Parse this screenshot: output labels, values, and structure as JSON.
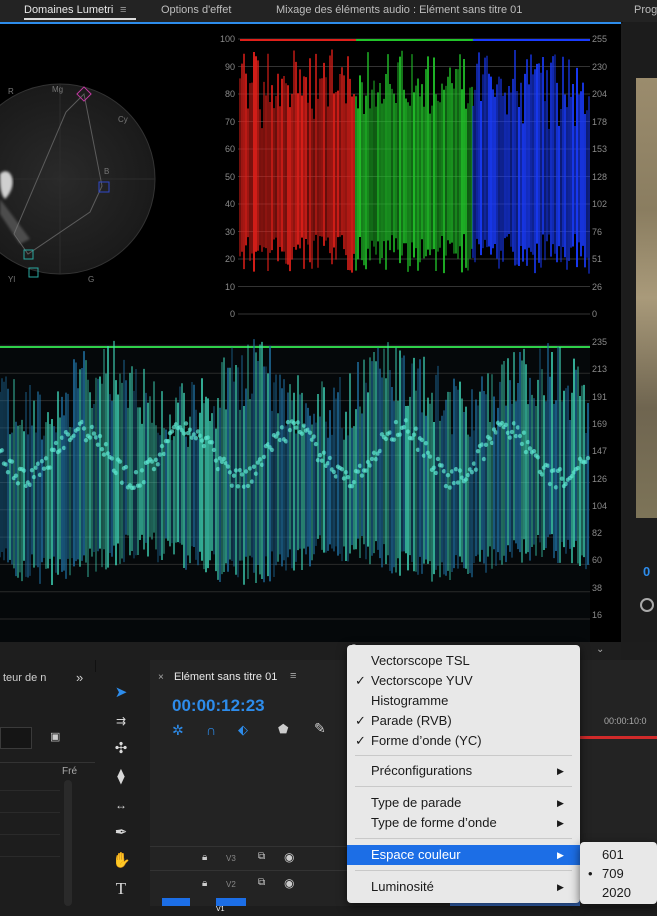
{
  "tabs": {
    "lumetri": "Domaines Lumetri",
    "options": "Options d'effet",
    "mixer": "Mixage des éléments audio : Elément sans titre 01",
    "program": "Prog"
  },
  "parade": {
    "left_scale": [
      "100",
      "90",
      "80",
      "70",
      "60",
      "50",
      "40",
      "30",
      "20",
      "10",
      "0"
    ],
    "right_scale": [
      "255",
      "230",
      "204",
      "178",
      "153",
      "128",
      "102",
      "76",
      "51",
      "26",
      "0"
    ]
  },
  "vectorscope": {
    "labels": [
      "R",
      "Mg",
      "B",
      "Cy",
      "G",
      "Yl"
    ]
  },
  "waveform": {
    "right_scale": [
      "235",
      "213",
      "191",
      "169",
      "147",
      "126",
      "104",
      "82",
      "60",
      "38",
      "16"
    ]
  },
  "program": {
    "timecode_fragment": "0"
  },
  "project": {
    "title": "teur de n",
    "expand": "»",
    "col_label": "Fré"
  },
  "timeline": {
    "tab_title": "Elément sans titre 01",
    "timecode": "00:00:12:23",
    "ruler_time": "00:00:10:0",
    "tracks": [
      {
        "name": "V3"
      },
      {
        "name": "V2"
      },
      {
        "name": "V1"
      }
    ]
  },
  "menu": {
    "items": [
      {
        "label": "Vectorscope TSL",
        "checked": false,
        "sub": false
      },
      {
        "label": "Vectorscope YUV",
        "checked": true,
        "sub": false
      },
      {
        "label": "Histogramme",
        "checked": false,
        "sub": false
      },
      {
        "label": "Parade (RVB)",
        "checked": true,
        "sub": false
      },
      {
        "label": "Forme d’onde (YC)",
        "checked": true,
        "sub": false
      },
      {
        "label": "Préconfigurations",
        "checked": false,
        "sub": true
      },
      {
        "label": "Type de parade",
        "checked": false,
        "sub": true
      },
      {
        "label": "Type de forme d’onde",
        "checked": false,
        "sub": true
      },
      {
        "label": "Espace couleur",
        "checked": false,
        "sub": true,
        "highlighted": true
      },
      {
        "label": "Luminosité",
        "checked": false,
        "sub": true
      }
    ],
    "check_glyph": "✓",
    "arrow_glyph": "▶"
  },
  "submenu": {
    "items": [
      {
        "label": "601",
        "selected": false
      },
      {
        "label": "709",
        "selected": true
      },
      {
        "label": "2020",
        "selected": false
      }
    ],
    "bullet": "•"
  },
  "colors": {
    "accent": "#2d8ceb",
    "menu_highlight": "#1c6ee6",
    "red_channel": "#e0201a",
    "green_channel": "#22c42a",
    "blue_channel": "#1a3cff",
    "waveform": "#3fd6b8"
  }
}
